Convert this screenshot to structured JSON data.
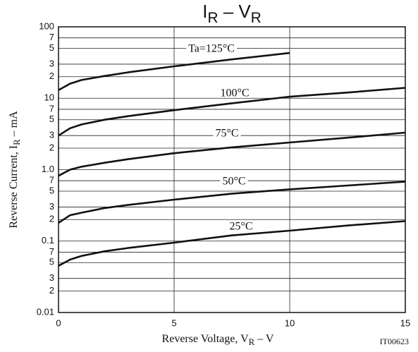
{
  "chart_data": {
    "type": "line",
    "title": [
      {
        "text": "I"
      },
      {
        "text": "R",
        "sub": true
      },
      {
        "text": " – V"
      },
      {
        "text": "R",
        "sub": true
      }
    ],
    "xlabel": [
      {
        "text": "Reverse Voltage,  V"
      },
      {
        "text": "R",
        "sub": true
      },
      {
        "text": "  –  V"
      }
    ],
    "ylabel": [
      {
        "text": "Reverse Current,  I"
      },
      {
        "text": "R",
        "sub": true
      },
      {
        "text": "  –  mA"
      }
    ],
    "figure_code": "IT00623",
    "log_y": true,
    "grid": true,
    "xlim": [
      0,
      15
    ],
    "xticks": [
      0,
      5,
      10,
      15
    ],
    "ylim": [
      0.01,
      100
    ],
    "yticks": [
      0.01,
      {
        "value": 0.02,
        "label": "2"
      },
      {
        "value": 0.03,
        "label": "3"
      },
      {
        "value": 0.05,
        "label": "5"
      },
      {
        "value": 0.07,
        "label": "7"
      },
      0.1,
      {
        "value": 0.2,
        "label": "2"
      },
      {
        "value": 0.3,
        "label": "3"
      },
      {
        "value": 0.5,
        "label": "5"
      },
      {
        "value": 0.7,
        "label": "7"
      },
      {
        "value": 1,
        "label": "1.0"
      },
      2,
      3,
      5,
      7,
      10,
      {
        "value": 20,
        "label": "2"
      },
      {
        "value": 30,
        "label": "3"
      },
      {
        "value": 50,
        "label": "5"
      },
      {
        "value": 70,
        "label": "7"
      },
      100
    ],
    "x": [
      0,
      0.5,
      1,
      2,
      3,
      5,
      7.5,
      10,
      12.5,
      15
    ],
    "series": [
      {
        "name": "Ta=125°C",
        "color": "#111111",
        "values": [
          13,
          16,
          18,
          20.5,
          23,
          28,
          35,
          43,
          null,
          null
        ]
      },
      {
        "name": "100°C",
        "color": "#111111",
        "values": [
          3,
          3.8,
          4.3,
          5,
          5.6,
          6.8,
          8.5,
          10.5,
          12,
          14
        ]
      },
      {
        "name": "75°C",
        "color": "#111111",
        "values": [
          0.82,
          1.0,
          1.1,
          1.25,
          1.4,
          1.7,
          2.05,
          2.4,
          2.8,
          3.3
        ]
      },
      {
        "name": "50°C",
        "color": "#111111",
        "values": [
          0.18,
          0.23,
          0.25,
          0.29,
          0.32,
          0.38,
          0.46,
          0.53,
          0.6,
          0.68
        ]
      },
      {
        "name": "25°C",
        "color": "#111111",
        "values": [
          0.045,
          0.055,
          0.062,
          0.072,
          0.08,
          0.095,
          0.12,
          0.14,
          0.165,
          0.19
        ]
      }
    ]
  }
}
